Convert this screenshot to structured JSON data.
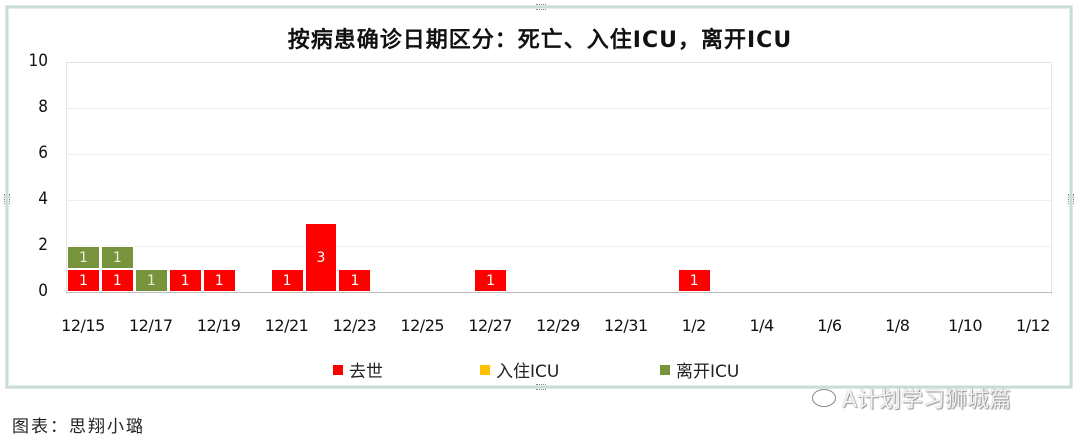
{
  "chart_data": {
    "type": "bar",
    "stacked": true,
    "title": "按病患确诊日期区分：死亡、入住ICU，离开ICU",
    "xlabel": "",
    "ylabel": "",
    "ylim": [
      0,
      10
    ],
    "yticks": [
      "10",
      "8",
      "6",
      "4",
      "2",
      "0"
    ],
    "xtick_labels": [
      "12/15",
      "12/17",
      "12/19",
      "12/21",
      "12/23",
      "12/25",
      "12/27",
      "12/29",
      "12/31",
      "1/2",
      "1/4",
      "1/6",
      "1/8",
      "1/10",
      "1/12"
    ],
    "categories": [
      "12/15",
      "12/16",
      "12/17",
      "12/18",
      "12/19",
      "12/20",
      "12/21",
      "12/22",
      "12/23",
      "12/24",
      "12/25",
      "12/26",
      "12/27",
      "12/28",
      "12/29",
      "12/30",
      "12/31",
      "1/1",
      "1/2",
      "1/3",
      "1/4",
      "1/5",
      "1/6",
      "1/7",
      "1/8",
      "1/9",
      "1/10",
      "1/11",
      "1/12"
    ],
    "series": [
      {
        "name": "去世",
        "color": "#ff0000",
        "values": [
          1,
          1,
          0,
          1,
          1,
          0,
          1,
          3,
          1,
          0,
          0,
          0,
          1,
          0,
          0,
          0,
          0,
          0,
          1,
          0,
          0,
          0,
          0,
          0,
          0,
          0,
          0,
          0,
          0
        ]
      },
      {
        "name": "入住ICU",
        "color": "#ffc000",
        "values": [
          0,
          0,
          0,
          0,
          0,
          0,
          0,
          0,
          0,
          0,
          0,
          0,
          0,
          0,
          0,
          0,
          0,
          0,
          0,
          0,
          0,
          0,
          0,
          0,
          0,
          0,
          0,
          0,
          0
        ]
      },
      {
        "name": "离开ICU",
        "color": "#77933c",
        "values": [
          1,
          1,
          1,
          0,
          0,
          0,
          0,
          0,
          0,
          0,
          0,
          0,
          0,
          0,
          0,
          0,
          0,
          0,
          0,
          0,
          0,
          0,
          0,
          0,
          0,
          0,
          0,
          0,
          0
        ]
      }
    ],
    "grid": true,
    "legend_position": "bottom",
    "data_labels": true
  },
  "legend": [
    {
      "label": "去世",
      "color": "#ff0000"
    },
    {
      "label": "入住ICU",
      "color": "#ffc000"
    },
    {
      "label": "离开ICU",
      "color": "#77933c"
    }
  ],
  "caption": "图表：思翔小璐",
  "watermark": "A计划学习狮城篇"
}
